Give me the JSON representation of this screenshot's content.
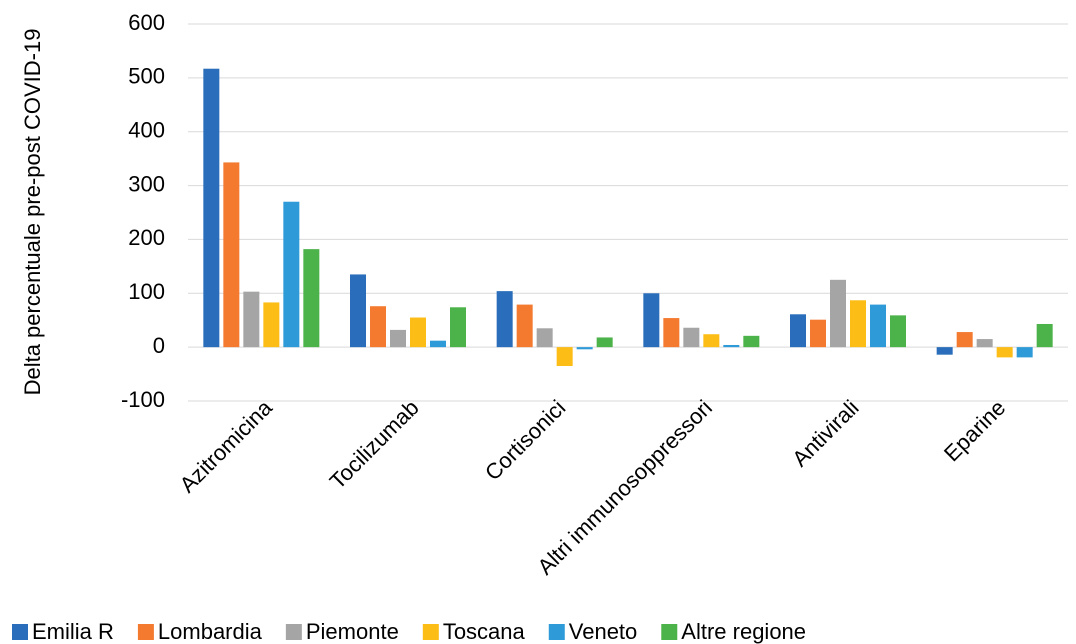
{
  "chart_data": {
    "type": "bar",
    "y_label": "Delta percentuale pre-post COVID-19",
    "categories": [
      "Azitromicina",
      "Tocilizumab",
      "Cortisonici",
      "Altri immunosoppressori",
      "Antivirali",
      "Eparine"
    ],
    "series": [
      {
        "name": "Emilia R",
        "color": "#2a6ebb",
        "values": [
          517,
          135,
          104,
          100,
          61,
          -14
        ]
      },
      {
        "name": "Lombardia",
        "color": "#f47a30",
        "values": [
          343,
          76,
          79,
          54,
          51,
          28
        ]
      },
      {
        "name": "Piemonte",
        "color": "#a5a5a5",
        "values": [
          103,
          32,
          35,
          36,
          125,
          15
        ]
      },
      {
        "name": "Toscana",
        "color": "#fbbd16",
        "values": [
          83,
          55,
          -35,
          24,
          87,
          -19
        ]
      },
      {
        "name": "Veneto",
        "color": "#2e9bd8",
        "values": [
          270,
          12,
          -4,
          4,
          79,
          -19
        ]
      },
      {
        "name": "Altre regione",
        "color": "#4cb24a",
        "values": [
          182,
          74,
          18,
          21,
          59,
          43
        ]
      }
    ],
    "ylim": [
      -100,
      600
    ],
    "yticks": [
      -100,
      0,
      100,
      200,
      300,
      400,
      500,
      600
    ],
    "grid": true,
    "legend": "bottom"
  }
}
